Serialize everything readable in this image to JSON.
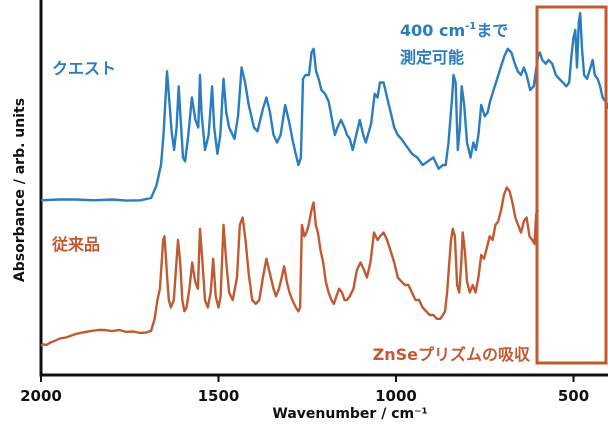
{
  "chart_data": {
    "type": "line",
    "xlabel": "Wavenumber / cm⁻¹",
    "ylabel": "Absorbance / arb. units",
    "xlim": [
      2000,
      400
    ],
    "x_reversed": true,
    "xticks": [
      2000,
      1500,
      1000,
      500
    ],
    "ylim": [
      0,
      1
    ],
    "grid": false,
    "colors": {
      "blue": "#2a7dbf",
      "orange": "#c05a32",
      "axis": "#111111"
    },
    "series": [
      {
        "name": "クエスト",
        "color": "#2a7dbf",
        "points": [
          [
            2000,
            0.466
          ],
          [
            1950,
            0.468
          ],
          [
            1900,
            0.468
          ],
          [
            1850,
            0.466
          ],
          [
            1800,
            0.468
          ],
          [
            1760,
            0.465
          ],
          [
            1720,
            0.466
          ],
          [
            1690,
            0.472
          ],
          [
            1675,
            0.505
          ],
          [
            1662,
            0.56
          ],
          [
            1655,
            0.64
          ],
          [
            1648,
            0.76
          ],
          [
            1645,
            0.81
          ],
          [
            1640,
            0.75
          ],
          [
            1632,
            0.65
          ],
          [
            1625,
            0.6
          ],
          [
            1618,
            0.66
          ],
          [
            1612,
            0.77
          ],
          [
            1606,
            0.67
          ],
          [
            1600,
            0.58
          ],
          [
            1594,
            0.57
          ],
          [
            1585,
            0.64
          ],
          [
            1575,
            0.74
          ],
          [
            1565,
            0.68
          ],
          [
            1557,
            0.66
          ],
          [
            1552,
            0.8
          ],
          [
            1548,
            0.7
          ],
          [
            1538,
            0.6
          ],
          [
            1528,
            0.64
          ],
          [
            1518,
            0.77
          ],
          [
            1512,
            0.66
          ],
          [
            1503,
            0.59
          ],
          [
            1495,
            0.64
          ],
          [
            1486,
            0.79
          ],
          [
            1478,
            0.7
          ],
          [
            1470,
            0.66
          ],
          [
            1455,
            0.63
          ],
          [
            1445,
            0.69
          ],
          [
            1435,
            0.82
          ],
          [
            1425,
            0.78
          ],
          [
            1415,
            0.72
          ],
          [
            1400,
            0.66
          ],
          [
            1390,
            0.65
          ],
          [
            1375,
            0.71
          ],
          [
            1365,
            0.74
          ],
          [
            1355,
            0.7
          ],
          [
            1345,
            0.64
          ],
          [
            1335,
            0.62
          ],
          [
            1325,
            0.64
          ],
          [
            1312,
            0.72
          ],
          [
            1300,
            0.67
          ],
          [
            1292,
            0.63
          ],
          [
            1285,
            0.6
          ],
          [
            1275,
            0.56
          ],
          [
            1268,
            0.58
          ],
          [
            1262,
            0.79
          ],
          [
            1255,
            0.8
          ],
          [
            1245,
            0.8
          ],
          [
            1238,
            0.86
          ],
          [
            1232,
            0.87
          ],
          [
            1225,
            0.81
          ],
          [
            1218,
            0.79
          ],
          [
            1210,
            0.76
          ],
          [
            1200,
            0.75
          ],
          [
            1190,
            0.73
          ],
          [
            1180,
            0.68
          ],
          [
            1172,
            0.64
          ],
          [
            1165,
            0.66
          ],
          [
            1155,
            0.68
          ],
          [
            1145,
            0.66
          ],
          [
            1138,
            0.64
          ],
          [
            1130,
            0.63
          ],
          [
            1122,
            0.6
          ],
          [
            1112,
            0.64
          ],
          [
            1102,
            0.68
          ],
          [
            1092,
            0.64
          ],
          [
            1085,
            0.62
          ],
          [
            1070,
            0.67
          ],
          [
            1060,
            0.75
          ],
          [
            1052,
            0.74
          ],
          [
            1045,
            0.78
          ],
          [
            1035,
            0.78
          ],
          [
            1025,
            0.74
          ],
          [
            1015,
            0.7
          ],
          [
            1005,
            0.66
          ],
          [
            995,
            0.64
          ],
          [
            985,
            0.63
          ],
          [
            970,
            0.61
          ],
          [
            955,
            0.59
          ],
          [
            940,
            0.58
          ],
          [
            925,
            0.56
          ],
          [
            910,
            0.57
          ],
          [
            895,
            0.58
          ],
          [
            880,
            0.55
          ],
          [
            868,
            0.56
          ],
          [
            860,
            0.56
          ],
          [
            852,
            0.62
          ],
          [
            842,
            0.74
          ],
          [
            838,
            0.8
          ],
          [
            832,
            0.78
          ],
          [
            826,
            0.6
          ],
          [
            820,
            0.66
          ],
          [
            815,
            0.77
          ],
          [
            808,
            0.72
          ],
          [
            800,
            0.62
          ],
          [
            790,
            0.58
          ],
          [
            782,
            0.62
          ],
          [
            775,
            0.6
          ],
          [
            768,
            0.64
          ],
          [
            760,
            0.72
          ],
          [
            750,
            0.69
          ],
          [
            742,
            0.7
          ],
          [
            735,
            0.73
          ],
          [
            725,
            0.76
          ],
          [
            715,
            0.79
          ],
          [
            705,
            0.82
          ],
          [
            695,
            0.85
          ],
          [
            685,
            0.87
          ],
          [
            675,
            0.86
          ],
          [
            665,
            0.83
          ],
          [
            657,
            0.81
          ],
          [
            648,
            0.8
          ],
          [
            640,
            0.82
          ],
          [
            632,
            0.8
          ],
          [
            622,
            0.76
          ],
          [
            612,
            0.77
          ],
          [
            600,
            0.85
          ],
          [
            595,
            0.86
          ],
          [
            588,
            0.84
          ],
          [
            578,
            0.83
          ],
          [
            570,
            0.84
          ],
          [
            560,
            0.83
          ],
          [
            550,
            0.8
          ],
          [
            540,
            0.79
          ],
          [
            530,
            0.78
          ],
          [
            520,
            0.77
          ],
          [
            512,
            0.78
          ],
          [
            506,
            0.85
          ],
          [
            500,
            0.9
          ],
          [
            495,
            0.92
          ],
          [
            490,
            0.82
          ],
          [
            485,
            0.94
          ],
          [
            481,
            0.965
          ],
          [
            476,
            0.87
          ],
          [
            470,
            0.8
          ],
          [
            462,
            0.79
          ],
          [
            452,
            0.82
          ],
          [
            446,
            0.84
          ],
          [
            440,
            0.8
          ],
          [
            432,
            0.79
          ],
          [
            425,
            0.77
          ],
          [
            418,
            0.74
          ],
          [
            410,
            0.73
          ],
          [
            404,
            0.72
          ],
          [
            400,
            0.71
          ]
        ]
      },
      {
        "name": "従来品",
        "color": "#c05a32",
        "points": [
          [
            2000,
            0.078
          ],
          [
            1995,
            0.082
          ],
          [
            1985,
            0.08
          ],
          [
            1975,
            0.086
          ],
          [
            1965,
            0.09
          ],
          [
            1955,
            0.094
          ],
          [
            1945,
            0.098
          ],
          [
            1930,
            0.1
          ],
          [
            1915,
            0.105
          ],
          [
            1900,
            0.11
          ],
          [
            1880,
            0.114
          ],
          [
            1860,
            0.117
          ],
          [
            1840,
            0.12
          ],
          [
            1820,
            0.12
          ],
          [
            1800,
            0.117
          ],
          [
            1780,
            0.12
          ],
          [
            1760,
            0.115
          ],
          [
            1740,
            0.116
          ],
          [
            1720,
            0.112
          ],
          [
            1705,
            0.113
          ],
          [
            1690,
            0.118
          ],
          [
            1680,
            0.15
          ],
          [
            1672,
            0.2
          ],
          [
            1665,
            0.23
          ],
          [
            1660,
            0.3
          ],
          [
            1656,
            0.36
          ],
          [
            1652,
            0.37
          ],
          [
            1648,
            0.31
          ],
          [
            1644,
            0.25
          ],
          [
            1640,
            0.2
          ],
          [
            1634,
            0.18
          ],
          [
            1626,
            0.2
          ],
          [
            1620,
            0.28
          ],
          [
            1614,
            0.36
          ],
          [
            1608,
            0.3
          ],
          [
            1602,
            0.2
          ],
          [
            1596,
            0.17
          ],
          [
            1590,
            0.18
          ],
          [
            1582,
            0.23
          ],
          [
            1574,
            0.3
          ],
          [
            1566,
            0.25
          ],
          [
            1558,
            0.23
          ],
          [
            1552,
            0.39
          ],
          [
            1546,
            0.31
          ],
          [
            1538,
            0.2
          ],
          [
            1530,
            0.18
          ],
          [
            1522,
            0.22
          ],
          [
            1515,
            0.31
          ],
          [
            1508,
            0.21
          ],
          [
            1500,
            0.18
          ],
          [
            1494,
            0.21
          ],
          [
            1486,
            0.4
          ],
          [
            1478,
            0.3
          ],
          [
            1470,
            0.22
          ],
          [
            1460,
            0.2
          ],
          [
            1448,
            0.26
          ],
          [
            1440,
            0.4
          ],
          [
            1432,
            0.42
          ],
          [
            1424,
            0.36
          ],
          [
            1415,
            0.27
          ],
          [
            1405,
            0.2
          ],
          [
            1395,
            0.19
          ],
          [
            1385,
            0.2
          ],
          [
            1375,
            0.26
          ],
          [
            1365,
            0.31
          ],
          [
            1355,
            0.27
          ],
          [
            1345,
            0.23
          ],
          [
            1338,
            0.21
          ],
          [
            1330,
            0.23
          ],
          [
            1322,
            0.26
          ],
          [
            1315,
            0.29
          ],
          [
            1308,
            0.25
          ],
          [
            1300,
            0.22
          ],
          [
            1292,
            0.2
          ],
          [
            1282,
            0.18
          ],
          [
            1275,
            0.17
          ],
          [
            1270,
            0.18
          ],
          [
            1265,
            0.4
          ],
          [
            1258,
            0.37
          ],
          [
            1252,
            0.38
          ],
          [
            1246,
            0.4
          ],
          [
            1238,
            0.44
          ],
          [
            1232,
            0.46
          ],
          [
            1226,
            0.4
          ],
          [
            1220,
            0.38
          ],
          [
            1212,
            0.33
          ],
          [
            1205,
            0.3
          ],
          [
            1198,
            0.25
          ],
          [
            1190,
            0.22
          ],
          [
            1182,
            0.2
          ],
          [
            1175,
            0.19
          ],
          [
            1168,
            0.21
          ],
          [
            1160,
            0.23
          ],
          [
            1152,
            0.22
          ],
          [
            1145,
            0.2
          ],
          [
            1138,
            0.2
          ],
          [
            1130,
            0.21
          ],
          [
            1120,
            0.23
          ],
          [
            1110,
            0.28
          ],
          [
            1100,
            0.3
          ],
          [
            1090,
            0.28
          ],
          [
            1082,
            0.26
          ],
          [
            1072,
            0.3
          ],
          [
            1062,
            0.38
          ],
          [
            1052,
            0.36
          ],
          [
            1045,
            0.37
          ],
          [
            1035,
            0.38
          ],
          [
            1025,
            0.36
          ],
          [
            1015,
            0.33
          ],
          [
            1005,
            0.3
          ],
          [
            995,
            0.26
          ],
          [
            985,
            0.25
          ],
          [
            975,
            0.24
          ],
          [
            965,
            0.24
          ],
          [
            955,
            0.22
          ],
          [
            945,
            0.2
          ],
          [
            935,
            0.2
          ],
          [
            925,
            0.18
          ],
          [
            915,
            0.17
          ],
          [
            905,
            0.16
          ],
          [
            895,
            0.16
          ],
          [
            885,
            0.15
          ],
          [
            875,
            0.15
          ],
          [
            868,
            0.16
          ],
          [
            862,
            0.17
          ],
          [
            856,
            0.22
          ],
          [
            850,
            0.3
          ],
          [
            845,
            0.36
          ],
          [
            840,
            0.39
          ],
          [
            834,
            0.37
          ],
          [
            828,
            0.24
          ],
          [
            822,
            0.22
          ],
          [
            816,
            0.3
          ],
          [
            812,
            0.38
          ],
          [
            806,
            0.33
          ],
          [
            800,
            0.25
          ],
          [
            792,
            0.22
          ],
          [
            784,
            0.24
          ],
          [
            776,
            0.22
          ],
          [
            768,
            0.26
          ],
          [
            760,
            0.32
          ],
          [
            752,
            0.31
          ],
          [
            744,
            0.34
          ],
          [
            736,
            0.37
          ],
          [
            728,
            0.36
          ],
          [
            720,
            0.4
          ],
          [
            712,
            0.41
          ],
          [
            704,
            0.44
          ],
          [
            696,
            0.48
          ],
          [
            688,
            0.5
          ],
          [
            680,
            0.49
          ],
          [
            672,
            0.46
          ],
          [
            664,
            0.42
          ],
          [
            656,
            0.4
          ],
          [
            648,
            0.38
          ],
          [
            640,
            0.41
          ],
          [
            632,
            0.42
          ],
          [
            624,
            0.37
          ],
          [
            616,
            0.36
          ],
          [
            610,
            0.35
          ],
          [
            605,
            0.43
          ],
          [
            600,
            0.44
          ]
        ]
      }
    ],
    "annotations": {
      "quest_label": "クエスト",
      "conventional_label": "従来品",
      "quest_range_line1": "400 cm",
      "quest_range_sup": "-1",
      "quest_range_suffix": "まで",
      "quest_range_line2": "測定可能",
      "znse_note": "ZnSeプリズムの吸収"
    }
  }
}
